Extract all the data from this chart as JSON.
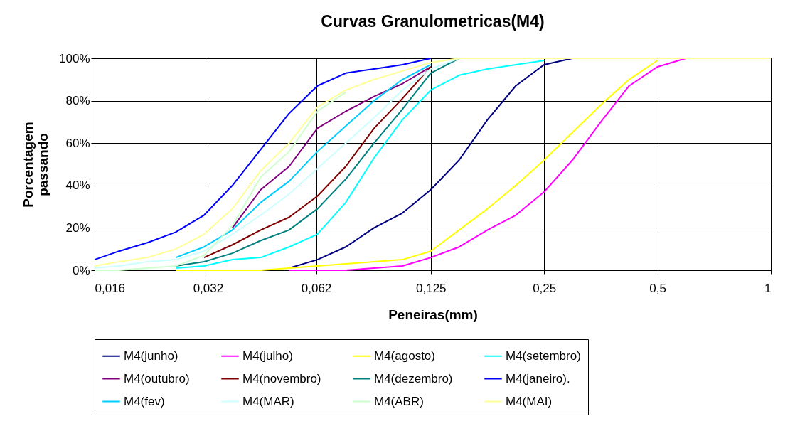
{
  "chart_data": {
    "type": "line",
    "title": "Curvas Granulometricas(M4)",
    "xlabel": "Peneiras(mm)",
    "ylabel": "Porcentagem passando",
    "x": [
      0.016,
      0.01858,
      0.0221,
      0.02628,
      0.03125,
      0.03716,
      0.04419,
      0.05256,
      0.0625,
      0.07433,
      0.08839,
      0.1051,
      0.125,
      0.1487,
      0.1768,
      0.2102,
      0.25,
      0.2973,
      0.3536,
      0.4204,
      0.5,
      0.5946,
      0.7071,
      0.8409,
      1
    ],
    "log": "x",
    "xlim": [
      0.016,
      1
    ],
    "xticks": [
      {
        "value": 0.016,
        "label": "0,016"
      },
      {
        "value": 0.032,
        "label": "0,032"
      },
      {
        "value": 0.062,
        "label": "0,062"
      },
      {
        "value": 0.125,
        "label": "0,125"
      },
      {
        "value": 0.25,
        "label": "0,25"
      },
      {
        "value": 0.5,
        "label": "0,5"
      },
      1
    ],
    "ylim": [
      0,
      100
    ],
    "yticks": [
      {
        "value": 0,
        "label": "0%"
      },
      {
        "value": 20,
        "label": "20%"
      },
      {
        "value": 40,
        "label": "40%"
      },
      {
        "value": 60,
        "label": "60%"
      },
      {
        "value": 80,
        "label": "80%"
      },
      {
        "value": 100,
        "label": "100%"
      }
    ],
    "grid": true,
    "legend": "bottom",
    "marker": "none",
    "line_style": "solid",
    "series": [
      {
        "name": "M4(junho)",
        "color": "#000080",
        "values": [
          null,
          null,
          null,
          null,
          null,
          null,
          null,
          1,
          5,
          11,
          20,
          27,
          38,
          52,
          71,
          87,
          97,
          100,
          null,
          null,
          null,
          null,
          null,
          null,
          null
        ]
      },
      {
        "name": "M4(julho)",
        "color": "#ff00ff",
        "values": [
          null,
          null,
          null,
          null,
          null,
          null,
          null,
          0,
          0,
          0,
          1,
          2,
          6,
          11,
          19,
          26,
          37,
          52,
          70,
          87,
          96,
          100,
          null,
          null,
          null
        ]
      },
      {
        "name": "M4(agosto)",
        "color": "#ffff00",
        "values": [
          null,
          null,
          null,
          0,
          0,
          0,
          0,
          1,
          2,
          3,
          4,
          5,
          9,
          19,
          29,
          40,
          52,
          65,
          78,
          90,
          99,
          null,
          null,
          null,
          null
        ]
      },
      {
        "name": "M4(setembro)",
        "color": "#00ffff",
        "values": [
          null,
          null,
          null,
          1,
          2,
          5,
          6,
          11,
          17,
          32,
          53,
          71,
          85,
          92,
          95,
          97,
          99,
          null,
          null,
          null,
          null,
          null,
          null,
          null,
          null
        ]
      },
      {
        "name": "M4(outubro)",
        "color": "#800080",
        "values": [
          null,
          null,
          null,
          null,
          null,
          20,
          38,
          49,
          67,
          75,
          82,
          88,
          96,
          null,
          null,
          null,
          null,
          null,
          null,
          null,
          null,
          null,
          null,
          null,
          null
        ]
      },
      {
        "name": "M4(novembro)",
        "color": "#800000",
        "values": [
          null,
          null,
          null,
          null,
          6,
          12,
          19,
          25,
          35,
          49,
          67,
          81,
          96,
          null,
          null,
          null,
          null,
          null,
          null,
          null,
          null,
          null,
          null,
          null,
          null
        ]
      },
      {
        "name": "M4(dezembro)",
        "color": "#008080",
        "values": [
          null,
          null,
          null,
          2,
          4,
          8,
          14,
          19,
          29,
          43,
          60,
          76,
          93,
          100,
          null,
          null,
          null,
          null,
          null,
          null,
          null,
          null,
          null,
          null,
          null
        ]
      },
      {
        "name": "M4(janeiro).",
        "color": "#0000ff",
        "values": [
          5,
          9,
          13,
          18,
          26,
          40,
          57,
          74,
          87,
          93,
          95,
          97,
          100,
          null,
          null,
          null,
          null,
          null,
          null,
          null,
          null,
          null,
          null,
          null,
          null
        ]
      },
      {
        "name": "M4(fev)",
        "color": "#00ccff",
        "values": [
          null,
          null,
          null,
          6,
          11,
          19,
          32,
          42,
          56,
          68,
          80,
          90,
          97,
          null,
          null,
          null,
          null,
          null,
          null,
          null,
          null,
          null,
          null,
          null,
          null
        ]
      },
      {
        "name": "M4(MAR)",
        "color": "#ccffff",
        "values": [
          1,
          2,
          4,
          5,
          9,
          17,
          26,
          36,
          48,
          60,
          72,
          85,
          95,
          100,
          null,
          null,
          null,
          null,
          null,
          null,
          null,
          null,
          null,
          null,
          null
        ]
      },
      {
        "name": "M4(ABR)",
        "color": "#ccffcc",
        "values": [
          0,
          0,
          1,
          2,
          7,
          21,
          44,
          56,
          75,
          84,
          null,
          null,
          null,
          null,
          null,
          null,
          null,
          null,
          null,
          null,
          null,
          null,
          null,
          null,
          null
        ]
      },
      {
        "name": "M4(MAI)",
        "color": "#ffff99",
        "values": [
          2,
          4,
          6,
          10,
          17,
          29,
          47,
          60,
          77,
          85,
          90,
          94,
          98,
          100,
          100,
          100,
          100,
          100,
          100,
          100,
          100,
          100,
          100,
          100,
          100
        ]
      }
    ]
  }
}
